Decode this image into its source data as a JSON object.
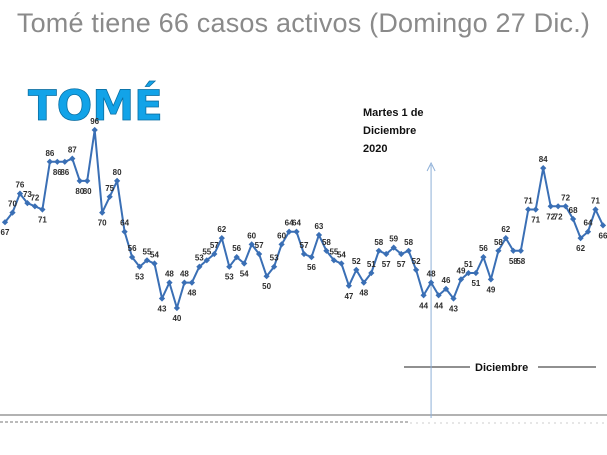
{
  "title": "Tomé tiene 66 casos activos (Domingo 27 Dic.)",
  "big_label": "TOMÉ",
  "annotation": {
    "lines": [
      "Martes 1 de",
      "Diciembre",
      "2020"
    ]
  },
  "month_label": "Diciembre",
  "colors": {
    "series": "#3a6fb5",
    "title": "#8a8a8a",
    "big_label": "#12a3e8"
  },
  "chart_data": {
    "type": "line",
    "title": "Tomé tiene 66 casos activos (Domingo 27 Dic.)",
    "xlabel": "",
    "ylabel": "",
    "ylim": [
      38,
      97
    ],
    "grid": false,
    "legend": "none",
    "x_axis_ticks_visible": false,
    "marker_index": 57,
    "series": [
      {
        "values": [
          67,
          70,
          76,
          73,
          72,
          71,
          86,
          86,
          86,
          87,
          80,
          80,
          96,
          70,
          75,
          80,
          64,
          56,
          53,
          55,
          54,
          43,
          48,
          40,
          48,
          48,
          53,
          55,
          57,
          62,
          53,
          56,
          54,
          60,
          57,
          50,
          53,
          60,
          64,
          64,
          57,
          56,
          63,
          58,
          55,
          54,
          47,
          52,
          48,
          51,
          58,
          57,
          59,
          57,
          58,
          52,
          44,
          48,
          44,
          46,
          43,
          49,
          51,
          51,
          56,
          49,
          58,
          62,
          58,
          58,
          71,
          71,
          84,
          72,
          72,
          72,
          68,
          62,
          64,
          71,
          66
        ]
      }
    ]
  }
}
